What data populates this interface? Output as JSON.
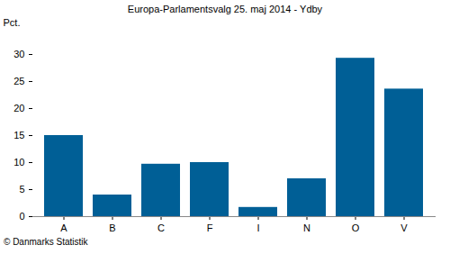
{
  "chart_data": {
    "type": "bar",
    "title": "Europa-Parlamentsvalg 25. maj 2014 - Ydby",
    "y_label": "Pct.",
    "caption": "© Danmarks Statistik",
    "categories": [
      "A",
      "B",
      "C",
      "F",
      "I",
      "N",
      "O",
      "V"
    ],
    "values": [
      15.0,
      4.0,
      9.7,
      10.0,
      1.7,
      7.0,
      29.3,
      23.6
    ],
    "color": "#005f96",
    "ylim": [
      0,
      30
    ],
    "yticks": [
      0,
      5,
      10,
      15,
      20,
      25,
      30
    ],
    "grid": false
  }
}
